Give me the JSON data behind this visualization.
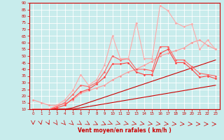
{
  "xlabel": "Vent moyen/en rafales ( km/h )",
  "xlim": [
    -0.5,
    23.5
  ],
  "ylim": [
    10,
    90
  ],
  "yticks": [
    10,
    15,
    20,
    25,
    30,
    35,
    40,
    45,
    50,
    55,
    60,
    65,
    70,
    75,
    80,
    85,
    90
  ],
  "xticks": [
    0,
    1,
    2,
    3,
    4,
    5,
    6,
    7,
    8,
    9,
    10,
    11,
    12,
    13,
    14,
    15,
    16,
    17,
    18,
    19,
    20,
    21,
    22,
    23
  ],
  "bg_color": "#c8ecec",
  "grid_color": "#aad4d4",
  "lines": [
    {
      "x": [
        0,
        1,
        2,
        3,
        4,
        5,
        6,
        7,
        8,
        9,
        10,
        11,
        12,
        13,
        14,
        15,
        16,
        17,
        18,
        19,
        20,
        21,
        22,
        23
      ],
      "y": [
        10,
        10,
        10,
        10,
        10,
        10,
        11,
        12,
        13,
        14,
        15,
        16,
        17,
        18,
        19,
        20,
        21,
        22,
        23,
        24,
        25,
        26,
        27,
        28
      ],
      "color": "#cc0000",
      "lw": 0.8,
      "marker": null
    },
    {
      "x": [
        0,
        1,
        2,
        3,
        4,
        5,
        6,
        7,
        8,
        9,
        10,
        11,
        12,
        13,
        14,
        15,
        16,
        17,
        18,
        19,
        20,
        21,
        22,
        23
      ],
      "y": [
        10,
        10,
        10,
        10,
        10,
        11,
        13,
        15,
        17,
        19,
        21,
        23,
        25,
        27,
        29,
        31,
        33,
        35,
        37,
        39,
        41,
        43,
        45,
        47
      ],
      "color": "#cc0000",
      "lw": 0.8,
      "marker": null
    },
    {
      "x": [
        0,
        1,
        2,
        3,
        4,
        5,
        6,
        7,
        8,
        9,
        10,
        11,
        12,
        13,
        14,
        15,
        16,
        17,
        18,
        19,
        20,
        21,
        22,
        23
      ],
      "y": [
        17,
        15,
        13,
        13,
        14,
        17,
        22,
        24,
        26,
        28,
        32,
        35,
        38,
        40,
        43,
        46,
        50,
        52,
        54,
        56,
        60,
        62,
        58,
        55
      ],
      "color": "#ff9999",
      "lw": 0.8,
      "marker": "D",
      "ms": 1.5
    },
    {
      "x": [
        0,
        1,
        2,
        3,
        4,
        5,
        6,
        7,
        8,
        9,
        10,
        11,
        12,
        13,
        14,
        15,
        16,
        17,
        18,
        19,
        20,
        21,
        22,
        23
      ],
      "y": [
        10,
        10,
        10,
        11,
        13,
        18,
        23,
        25,
        29,
        34,
        44,
        44,
        45,
        38,
        36,
        36,
        52,
        55,
        45,
        45,
        40,
        34,
        35,
        33
      ],
      "color": "#ff4444",
      "lw": 0.8,
      "marker": "D",
      "ms": 1.5
    },
    {
      "x": [
        0,
        1,
        2,
        3,
        4,
        5,
        6,
        7,
        8,
        9,
        10,
        11,
        12,
        13,
        14,
        15,
        16,
        17,
        18,
        19,
        20,
        21,
        22,
        23
      ],
      "y": [
        10,
        10,
        10,
        12,
        15,
        21,
        28,
        27,
        30,
        38,
        50,
        47,
        48,
        40,
        40,
        39,
        57,
        57,
        47,
        47,
        42,
        37,
        36,
        35
      ],
      "color": "#ff6666",
      "lw": 0.8,
      "marker": "D",
      "ms": 1.5
    },
    {
      "x": [
        0,
        1,
        2,
        3,
        4,
        5,
        6,
        7,
        8,
        9,
        10,
        11,
        12,
        13,
        14,
        15,
        16,
        17,
        18,
        19,
        20,
        21,
        22,
        23
      ],
      "y": [
        10,
        10,
        10,
        13,
        17,
        24,
        36,
        28,
        32,
        43,
        65,
        48,
        48,
        75,
        48,
        48,
        88,
        84,
        75,
        72,
        74,
        55,
        62,
        55
      ],
      "color": "#ffaaaa",
      "lw": 0.8,
      "marker": "D",
      "ms": 1.5
    }
  ]
}
